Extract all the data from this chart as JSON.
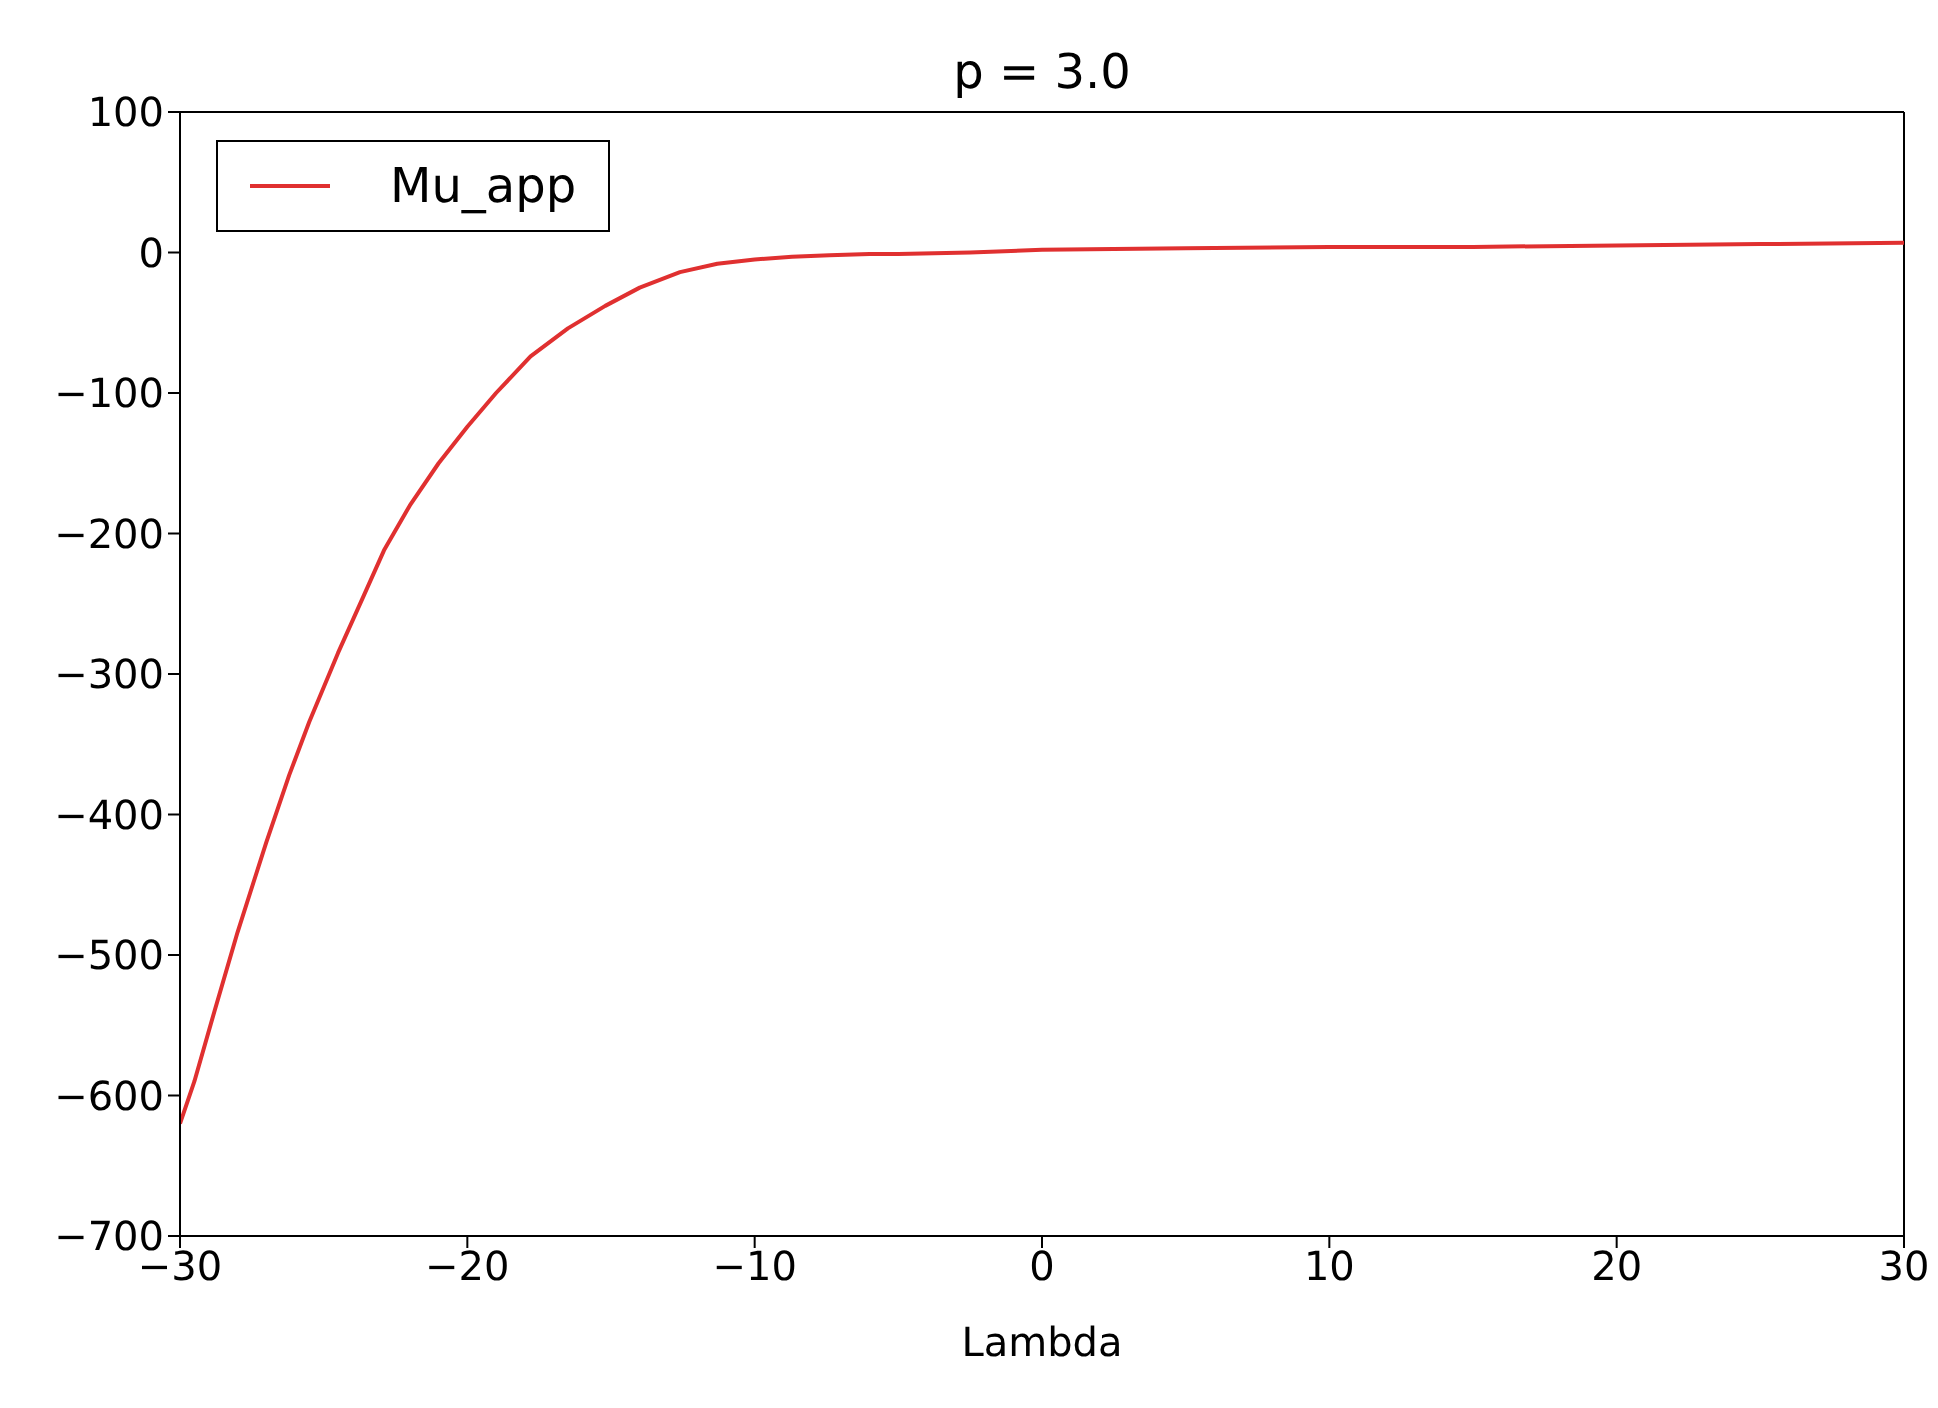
{
  "chart_data": {
    "type": "line",
    "title": "p = 3.0",
    "xlabel": "Lambda",
    "series": [
      {
        "name": "Mu_app",
        "color": "#e03030",
        "x": [
          -30,
          -29.5,
          -28.8,
          -28,
          -27,
          -26.2,
          -25.5,
          -24.5,
          -23.6,
          -22.9,
          -22,
          -21,
          -20,
          -19,
          -17.8,
          -16.5,
          -15.2,
          -14,
          -12.6,
          -11.3,
          -10,
          -8.7,
          -7.4,
          -6,
          -5,
          -2.5,
          0,
          5,
          10,
          15,
          20,
          25,
          30
        ],
        "values": [
          -620,
          -590,
          -540,
          -484,
          -420,
          -372,
          -334,
          -285,
          -244,
          -212,
          -180,
          -150,
          -124,
          -100,
          -74,
          -54,
          -38,
          -25,
          -14,
          -8,
          -5,
          -3,
          -2,
          -1,
          -1,
          0,
          2,
          3,
          4,
          4,
          5,
          6,
          7
        ]
      }
    ],
    "xlim": [
      -30,
      30
    ],
    "xticks": [
      -30,
      -20,
      -10,
      0,
      10,
      20,
      30
    ],
    "ylim": [
      -700,
      100
    ],
    "yticks": [
      -700,
      -600,
      -500,
      -400,
      -300,
      -200,
      -100,
      0,
      100
    ],
    "grid": false,
    "legend": "top left",
    "marker": "none",
    "line_style": "solid"
  }
}
